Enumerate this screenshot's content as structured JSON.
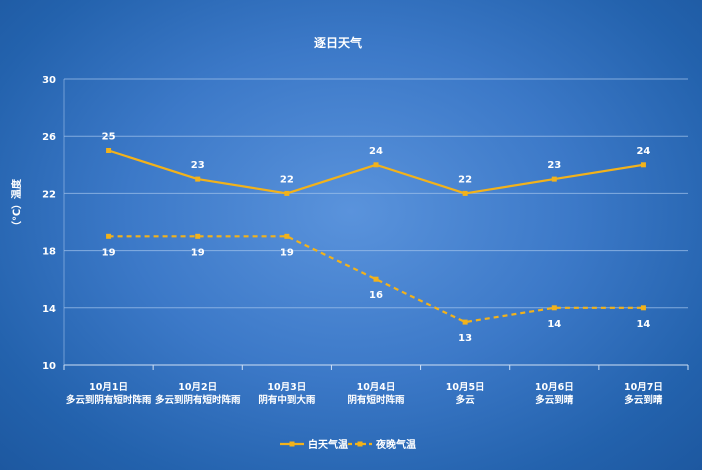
{
  "chart_data": {
    "type": "line",
    "title": "逐日天气",
    "ylabel": "（℃）温度",
    "ylim": [
      10,
      30
    ],
    "yticks": [
      10,
      14,
      18,
      22,
      26,
      30
    ],
    "categories": [
      {
        "date": "10月1日",
        "desc": "多云到阴有短时阵雨"
      },
      {
        "date": "10月2日",
        "desc": "多云到阴有短时阵雨"
      },
      {
        "date": "10月3日",
        "desc": "阴有中到大雨"
      },
      {
        "date": "10月4日",
        "desc": "阴有短时阵雨"
      },
      {
        "date": "10月5日",
        "desc": "多云"
      },
      {
        "date": "10月6日",
        "desc": "多云到晴"
      },
      {
        "date": "10月7日",
        "desc": "多云到晴"
      }
    ],
    "series": [
      {
        "name": "白天气温",
        "values": [
          25,
          23,
          22,
          24,
          22,
          23,
          24
        ],
        "style": "solid",
        "label_position": "above"
      },
      {
        "name": "夜晚气温",
        "values": [
          19,
          19,
          19,
          16,
          13,
          14,
          14
        ],
        "style": "dashed",
        "label_position": "below"
      }
    ],
    "colors": {
      "line": "#f2b21b",
      "grid": "#9fc0ea",
      "text": "#ffffff"
    },
    "grid": true,
    "legend": "bottom-center"
  }
}
